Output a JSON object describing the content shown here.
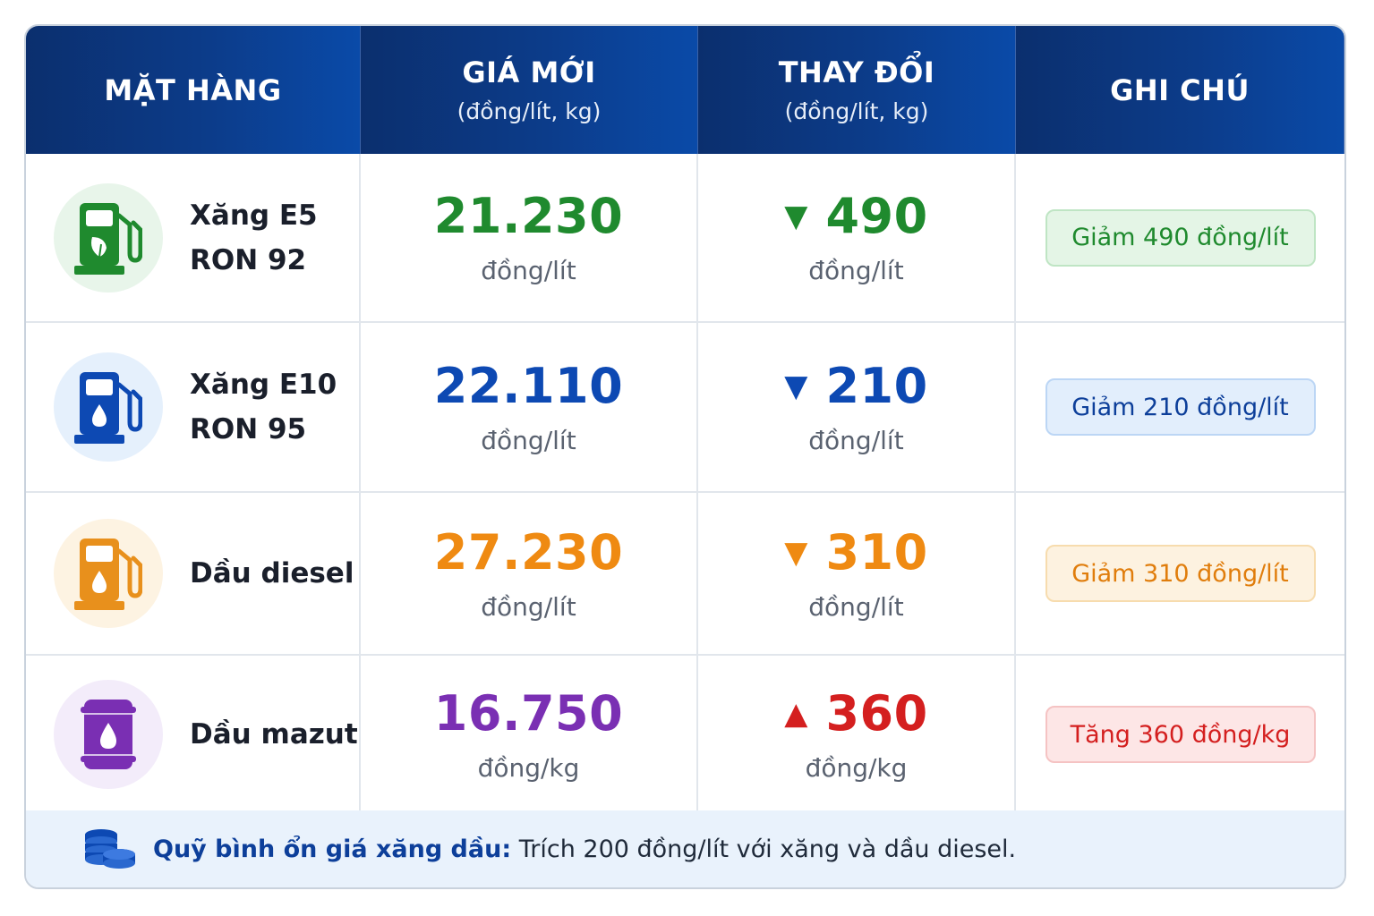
{
  "header": {
    "col1": "MẶT HÀNG",
    "col2": "GIÁ MỚI",
    "col2_sub": "(đồng/lít, kg)",
    "col3": "THAY ĐỔI",
    "col3_sub": "(đồng/lít, kg)",
    "col4": "GHI CHÚ"
  },
  "rows": [
    {
      "icon": "fuel-pump-leaf-icon",
      "name_line1": "Xăng E5",
      "name_line2": "RON 92",
      "price": "21.230",
      "price_unit": "đồng/lít",
      "direction": "down",
      "arrow": "▼",
      "change": "490",
      "change_unit": "đồng/lít",
      "note": "Giảm 490 đồng/lít",
      "color": "#1f8a2e",
      "icon_bg": "#e8f5ea",
      "badge_bg": "#e4f5e6",
      "badge_border": "#bfe5c4",
      "note_color": "#1f8a2e"
    },
    {
      "icon": "fuel-pump-drop-icon",
      "name_line1": "Xăng E10",
      "name_line2": "RON 95",
      "price": "22.110",
      "price_unit": "đồng/lít",
      "direction": "down",
      "arrow": "▼",
      "change": "210",
      "change_unit": "đồng/lít",
      "note": "Giảm 210 đồng/lít",
      "color": "#0d49b3",
      "icon_bg": "#e5f0fc",
      "badge_bg": "#e2eefc",
      "badge_border": "#bcd6f5",
      "note_color": "#0d3f9a"
    },
    {
      "icon": "fuel-pump-drop-icon",
      "name_line1": "Dầu diesel",
      "name_line2": "",
      "price": "27.230",
      "price_unit": "đồng/lít",
      "direction": "down",
      "arrow": "▼",
      "change": "310",
      "change_unit": "đồng/lít",
      "note": "Giảm 310 đồng/lít",
      "color": "#ef8a12",
      "icon_bg": "#fdf3e2",
      "badge_bg": "#fdf2e0",
      "badge_border": "#f7dcae",
      "note_color": "#e07d0c"
    },
    {
      "icon": "oil-barrel-icon",
      "name_line1": "Dầu mazut",
      "name_line2": "",
      "price": "16.750",
      "price_unit": "đồng/kg",
      "direction": "up",
      "arrow": "▲",
      "change": "360",
      "change_unit": "đồng/kg",
      "note": "Tăng 360 đồng/kg",
      "color": "#d41f1f",
      "price_color": "#7a2fb3",
      "icon_bg": "#f3ecfa",
      "badge_bg": "#fde6e6",
      "badge_border": "#f5c3c3",
      "note_color": "#d41f1f"
    }
  ],
  "footer": {
    "icon": "coins-icon",
    "label": "Quỹ bình ổn giá xăng dầu:",
    "text": "Trích 200 đồng/lít với xăng và dầu diesel."
  }
}
